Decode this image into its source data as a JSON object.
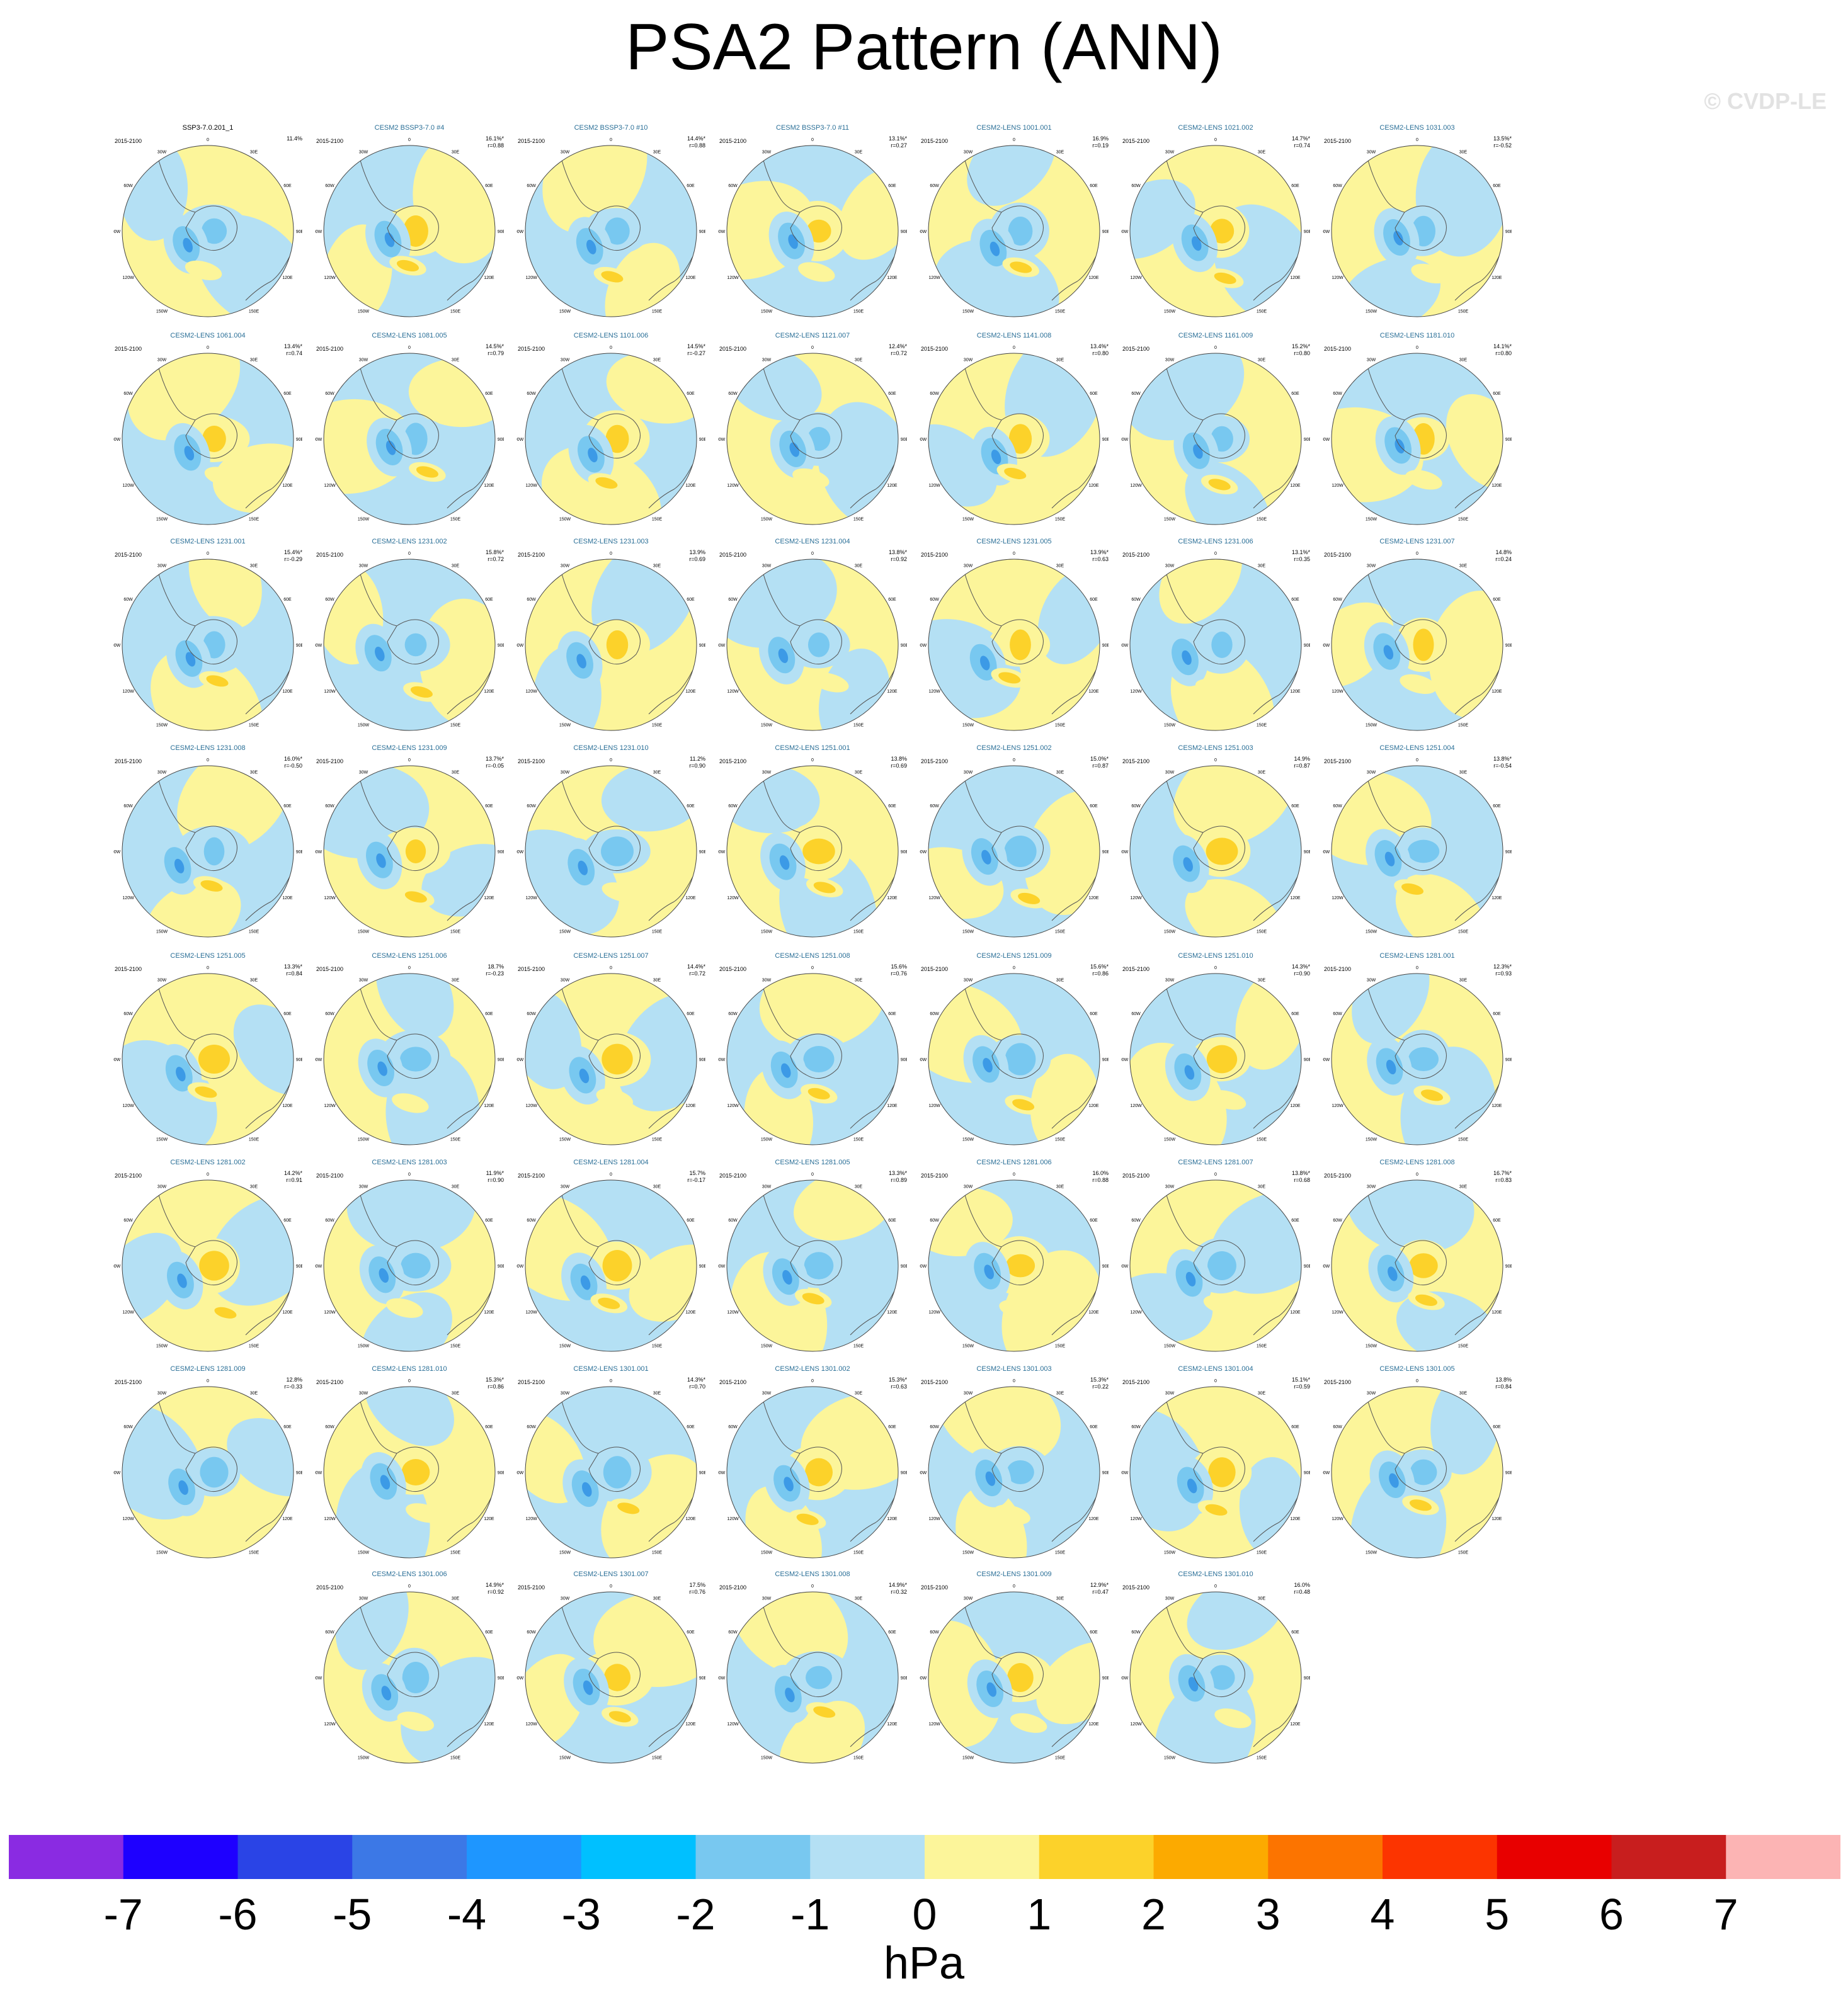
{
  "title": "PSA2 Pattern (ANN)",
  "watermark": "© CVDP-LE",
  "chart_data": {
    "type": "polar-contour-map-grid",
    "title": "PSA2 Pattern (ANN)",
    "years": "2015-2100",
    "map_labels": [
      "0",
      "30E",
      "60E",
      "90E",
      "120E",
      "150E",
      "180",
      "150W",
      "120W",
      "90W",
      "60W",
      "30W"
    ],
    "panels": [
      {
        "name": "SSP3-7.0.201_1",
        "pct": "11.4%",
        "r": ""
      },
      {
        "name": "CESM2 BSSP3-7.0 #4",
        "pct": "16.1%*",
        "r": "r=0.88"
      },
      {
        "name": "CESM2 BSSP3-7.0 #10",
        "pct": "14.4%*",
        "r": "r=0.88"
      },
      {
        "name": "CESM2 BSSP3-7.0 #11",
        "pct": "13.1%*",
        "r": "r=0.27"
      },
      {
        "name": "CESM2-LENS 1001.001",
        "pct": "16.9%",
        "r": "r=0.19"
      },
      {
        "name": "CESM2-LENS 1021.002",
        "pct": "14.7%*",
        "r": "r=0.74"
      },
      {
        "name": "CESM2-LENS 1031.003",
        "pct": "13.5%*",
        "r": "r=-0.52"
      },
      {
        "name": "CESM2-LENS 1061.004",
        "pct": "13.4%*",
        "r": "r=0.74"
      },
      {
        "name": "CESM2-LENS 1081.005",
        "pct": "14.5%*",
        "r": "r=0.79"
      },
      {
        "name": "CESM2-LENS 1101.006",
        "pct": "14.5%*",
        "r": "r=-0.27"
      },
      {
        "name": "CESM2-LENS 1121.007",
        "pct": "12.4%*",
        "r": "r=0.72"
      },
      {
        "name": "CESM2-LENS 1141.008",
        "pct": "13.4%*",
        "r": "r=0.80"
      },
      {
        "name": "CESM2-LENS 1161.009",
        "pct": "15.2%*",
        "r": "r=0.80"
      },
      {
        "name": "CESM2-LENS 1181.010",
        "pct": "14.1%*",
        "r": "r=0.80"
      },
      {
        "name": "CESM2-LENS 1231.001",
        "pct": "15.4%*",
        "r": "r=-0.29"
      },
      {
        "name": "CESM2-LENS 1231.002",
        "pct": "15.8%*",
        "r": "r=0.72"
      },
      {
        "name": "CESM2-LENS 1231.003",
        "pct": "13.9%",
        "r": "r=0.69"
      },
      {
        "name": "CESM2-LENS 1231.004",
        "pct": "13.8%*",
        "r": "r=0.92"
      },
      {
        "name": "CESM2-LENS 1231.005",
        "pct": "13.9%*",
        "r": "r=0.63"
      },
      {
        "name": "CESM2-LENS 1231.006",
        "pct": "13.1%*",
        "r": "r=0.35"
      },
      {
        "name": "CESM2-LENS 1231.007",
        "pct": "14.8%",
        "r": "r=0.24"
      },
      {
        "name": "CESM2-LENS 1231.008",
        "pct": "16.0%*",
        "r": "r=-0.50"
      },
      {
        "name": "CESM2-LENS 1231.009",
        "pct": "13.7%*",
        "r": "r=-0.05"
      },
      {
        "name": "CESM2-LENS 1231.010",
        "pct": "11.2%",
        "r": "r=0.90"
      },
      {
        "name": "CESM2-LENS 1251.001",
        "pct": "13.8%",
        "r": "r=0.69"
      },
      {
        "name": "CESM2-LENS 1251.002",
        "pct": "15.0%*",
        "r": "r=0.87"
      },
      {
        "name": "CESM2-LENS 1251.003",
        "pct": "14.9%",
        "r": "r=0.87"
      },
      {
        "name": "CESM2-LENS 1251.004",
        "pct": "13.8%*",
        "r": "r=-0.54"
      },
      {
        "name": "CESM2-LENS 1251.005",
        "pct": "13.3%*",
        "r": "r=0.84"
      },
      {
        "name": "CESM2-LENS 1251.006",
        "pct": "18.7%",
        "r": "r=-0.23"
      },
      {
        "name": "CESM2-LENS 1251.007",
        "pct": "14.4%*",
        "r": "r=0.72"
      },
      {
        "name": "CESM2-LENS 1251.008",
        "pct": "15.6%",
        "r": "r=0.76"
      },
      {
        "name": "CESM2-LENS 1251.009",
        "pct": "15.6%*",
        "r": "r=0.86"
      },
      {
        "name": "CESM2-LENS 1251.010",
        "pct": "14.3%*",
        "r": "r=0.90"
      },
      {
        "name": "CESM2-LENS 1281.001",
        "pct": "12.3%*",
        "r": "r=0.93"
      },
      {
        "name": "CESM2-LENS 1281.002",
        "pct": "14.2%*",
        "r": "r=0.91"
      },
      {
        "name": "CESM2-LENS 1281.003",
        "pct": "11.9%*",
        "r": "r=0.90"
      },
      {
        "name": "CESM2-LENS 1281.004",
        "pct": "15.7%",
        "r": "r=-0.17"
      },
      {
        "name": "CESM2-LENS 1281.005",
        "pct": "13.3%*",
        "r": "r=0.89"
      },
      {
        "name": "CESM2-LENS 1281.006",
        "pct": "16.0%",
        "r": "r=0.88"
      },
      {
        "name": "CESM2-LENS 1281.007",
        "pct": "13.8%*",
        "r": "r=0.68"
      },
      {
        "name": "CESM2-LENS 1281.008",
        "pct": "16.7%*",
        "r": "r=0.83"
      },
      {
        "name": "CESM2-LENS 1281.009",
        "pct": "12.8%",
        "r": "r=-0.33"
      },
      {
        "name": "CESM2-LENS 1281.010",
        "pct": "15.3%*",
        "r": "r=0.86"
      },
      {
        "name": "CESM2-LENS 1301.001",
        "pct": "14.3%*",
        "r": "r=0.70"
      },
      {
        "name": "CESM2-LENS 1301.002",
        "pct": "15.3%*",
        "r": "r=0.63"
      },
      {
        "name": "CESM2-LENS 1301.003",
        "pct": "15.3%*",
        "r": "r=0.22"
      },
      {
        "name": "CESM2-LENS 1301.004",
        "pct": "15.1%*",
        "r": "r=0.59"
      },
      {
        "name": "CESM2-LENS 1301.005",
        "pct": "13.8%",
        "r": "r=0.84"
      },
      {
        "name": "CESM2-LENS 1301.006",
        "pct": "14.9%*",
        "r": "r=0.92"
      },
      {
        "name": "CESM2-LENS 1301.007",
        "pct": "17.5%",
        "r": "r=0.76"
      },
      {
        "name": "CESM2-LENS 1301.008",
        "pct": "14.9%*",
        "r": "r=0.32"
      },
      {
        "name": "CESM2-LENS 1301.009",
        "pct": "12.9%*",
        "r": "r=0.47"
      },
      {
        "name": "CESM2-LENS 1301.010",
        "pct": "16.0%",
        "r": "r=0.48"
      }
    ],
    "colorbar": {
      "units": "hPa",
      "ticks": [
        "-7",
        "-6",
        "-5",
        "-4",
        "-3",
        "-2",
        "-1",
        "0",
        "1",
        "2",
        "3",
        "4",
        "5",
        "6",
        "7"
      ],
      "colors": [
        "#8a2be2",
        "#1e00ff",
        "#2a44e6",
        "#3c78e6",
        "#1e96ff",
        "#00c0ff",
        "#78c8f0",
        "#b4e0f4",
        "#fcf59a",
        "#fcd22a",
        "#fcaa00",
        "#fc7400",
        "#fc3400",
        "#e80000",
        "#c81e1e",
        "#fcb4b4"
      ]
    }
  }
}
